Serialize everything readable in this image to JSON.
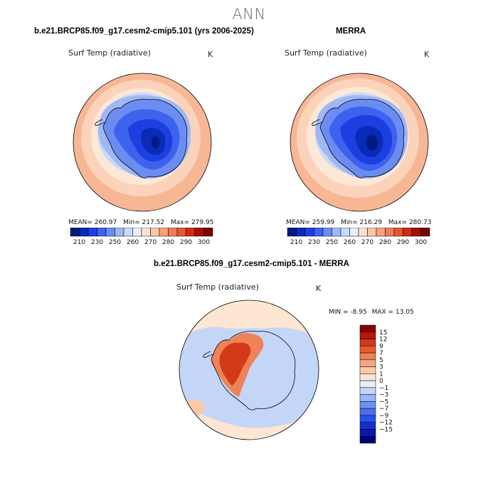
{
  "page": {
    "title": "ANN"
  },
  "panels": {
    "model": {
      "case_title": "b.e21.BRCP85.f09_g17.cesm2-cmip5.101 (yrs 2006-2025)",
      "variable": "Surf Temp (radiative)",
      "units": "K",
      "stats": {
        "mean_label": "MEAN=",
        "mean": "260.97",
        "min_label": "Min=",
        "min": "217.52",
        "max_label": "Max=",
        "max": "279.95"
      }
    },
    "obs": {
      "case_title": "MERRA",
      "variable": "Surf Temp (radiative)",
      "units": "K",
      "stats": {
        "mean_label": "MEAN=",
        "mean": "259.99",
        "min_label": "Min=",
        "min": "216.29",
        "max_label": "Max=",
        "max": "280.73"
      }
    },
    "diff": {
      "case_title": "b.e21.BRCP85.f09_g17.cesm2-cmip5.101 - MERRA",
      "variable": "Surf Temp (radiative)",
      "units": "K",
      "stats": {
        "min_label": "MIN =",
        "min": "-8.95",
        "max_label": "MAX =",
        "max": "13.05"
      }
    }
  },
  "colorbars": {
    "field": {
      "colors": [
        "#001a80",
        "#0a2ab8",
        "#1e3fe0",
        "#3d63ee",
        "#6b8df2",
        "#9fb8f5",
        "#c9d9f8",
        "#e8eefb",
        "#fde3cf",
        "#f9c6a6",
        "#f4a27d",
        "#ee7d58",
        "#e45532",
        "#cf2b15",
        "#a80e05",
        "#7a0000"
      ],
      "tick_labels": [
        "210",
        "230",
        "250",
        "260",
        "270",
        "280",
        "290",
        "300"
      ]
    },
    "difference": {
      "colors": [
        "#00007a",
        "#0a1aa8",
        "#1230d0",
        "#2a50e8",
        "#4a70f0",
        "#6e90f4",
        "#9ab4f6",
        "#c4d6f8",
        "#e6eefb",
        "#fde6d2",
        "#f9caa8",
        "#f4a67e",
        "#ee8258",
        "#e55c33",
        "#d23a18",
        "#b8180a",
        "#8a0000"
      ],
      "tick_labels": [
        "15",
        "12",
        "9",
        "7",
        "5",
        "3",
        "1",
        "0",
        "−1",
        "−3",
        "−5",
        "−7",
        "−9",
        "−12",
        "−15"
      ]
    }
  },
  "map_colors": {
    "ocean_warm_outer": "#f7b795",
    "ocean_warm_mid": "#fbd3bb",
    "ocean_cool": "#fde7d6",
    "ice_light": "#c9d9f8",
    "ice_mid": "#9fb8f5",
    "land_1": "#6b8df2",
    "land_2": "#3d63ee",
    "land_3": "#1e3fe0",
    "land_4": "#0a2ab8",
    "land_core": "#001a80",
    "diff_ocean": "#c4d6f8",
    "diff_ocean_pos": "#fde6d2",
    "diff_ocean_pos2": "#f9caa8",
    "diff_land_warm": "#ee8258",
    "diff_land_hot": "#d23a18",
    "diff_land_cool": "#c4d6f8"
  }
}
